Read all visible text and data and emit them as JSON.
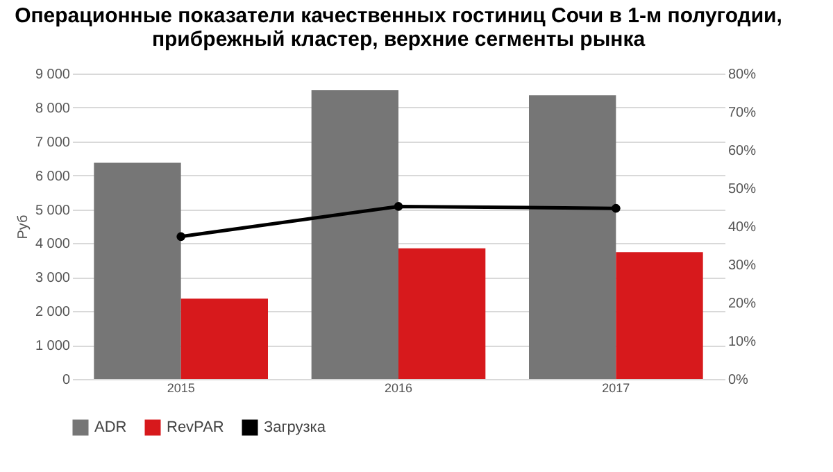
{
  "chart_data": {
    "type": "bar",
    "title": [
      "Операционные показатели качественных гостиниц Сочи в 1-м полугодии,",
      "прибрежный кластер, верхние сегменты рынка"
    ],
    "ylabel": "Руб",
    "categories": [
      "2015",
      "2016",
      "2017"
    ],
    "series": [
      {
        "name": "ADR",
        "color": "#767676",
        "values": [
          6370,
          8510,
          8360
        ]
      },
      {
        "name": "RevPAR",
        "color": "#d7191c",
        "values": [
          2370,
          3850,
          3740
        ]
      },
      {
        "name": "Загрузка",
        "type": "line",
        "axis": "y2",
        "color": "#000000",
        "values": [
          37.3,
          45.2,
          44.7
        ]
      }
    ],
    "ylim": [
      0,
      9000
    ],
    "yticks": [
      0,
      {
        "value": 1000,
        "label": "1 000"
      },
      {
        "value": 2000,
        "label": "2 000"
      },
      {
        "value": 3000,
        "label": "3 000"
      },
      {
        "value": 4000,
        "label": "4 000"
      },
      {
        "value": 5000,
        "label": "5 000"
      },
      {
        "value": 6000,
        "label": "6 000"
      },
      {
        "value": 7000,
        "label": "7 000"
      },
      {
        "value": 8000,
        "label": "8 000"
      },
      {
        "value": 9000,
        "label": "9 000"
      }
    ],
    "y2lim": [
      0,
      80
    ],
    "y2ticks": [
      {
        "value": 0,
        "label": "0%"
      },
      {
        "value": 10,
        "label": "10%"
      },
      {
        "value": 20,
        "label": "20%"
      },
      {
        "value": 30,
        "label": "30%"
      },
      {
        "value": 40,
        "label": "40%"
      },
      {
        "value": 50,
        "label": "50%"
      },
      {
        "value": 60,
        "label": "60%"
      },
      {
        "value": 70,
        "label": "70%"
      },
      {
        "value": 80,
        "label": "80%"
      }
    ],
    "grid": "y",
    "legend": "bottom",
    "marker": "circle",
    "line_style": "solid"
  }
}
